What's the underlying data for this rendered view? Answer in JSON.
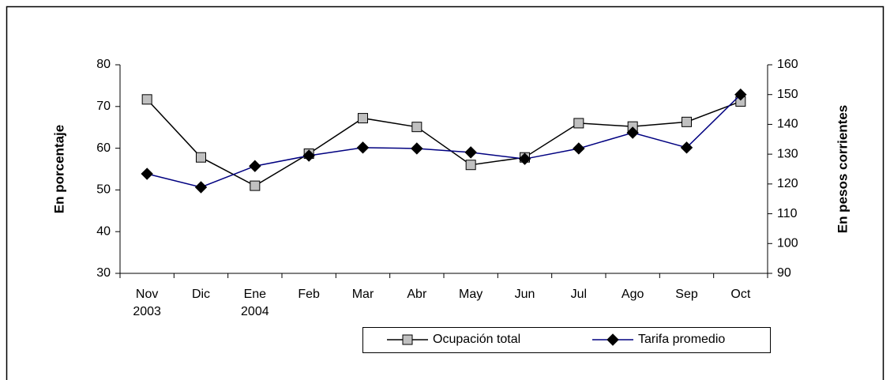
{
  "chart_data": {
    "type": "line",
    "categories": [
      "Nov\n2003",
      "Dic",
      "Ene\n2004",
      "Feb",
      "Mar",
      "Abr",
      "May",
      "Jun",
      "Jul",
      "Ago",
      "Sep",
      "Oct"
    ],
    "ylabel": "En porcentaje",
    "y2label": "En pesos corrientes",
    "ylim": [
      30,
      80
    ],
    "yticks": [
      30,
      40,
      50,
      60,
      70,
      80
    ],
    "y2lim": [
      90,
      160
    ],
    "y2ticks": [
      90,
      100,
      110,
      120,
      130,
      140,
      150,
      160
    ],
    "series": [
      {
        "name": "Ocupación total",
        "color": "#000000",
        "marker": "square",
        "marker_fill": "#c0c0c0",
        "values": [
          71.7,
          57.8,
          51,
          58.7,
          67.2,
          65.1,
          56,
          57.8,
          66,
          65.2,
          66.3,
          71.2
        ]
      },
      {
        "name": "Tarifa promedio",
        "color": "#000080",
        "marker": "diamond",
        "marker_fill": "#000000",
        "axis": "y2",
        "values": [
          123.4,
          118.9,
          126,
          129.5,
          132.2,
          131.9,
          130.6,
          128.4,
          131.9,
          137.2,
          132.2,
          150
        ]
      }
    ],
    "legend": "bottom-right",
    "grid": false
  }
}
